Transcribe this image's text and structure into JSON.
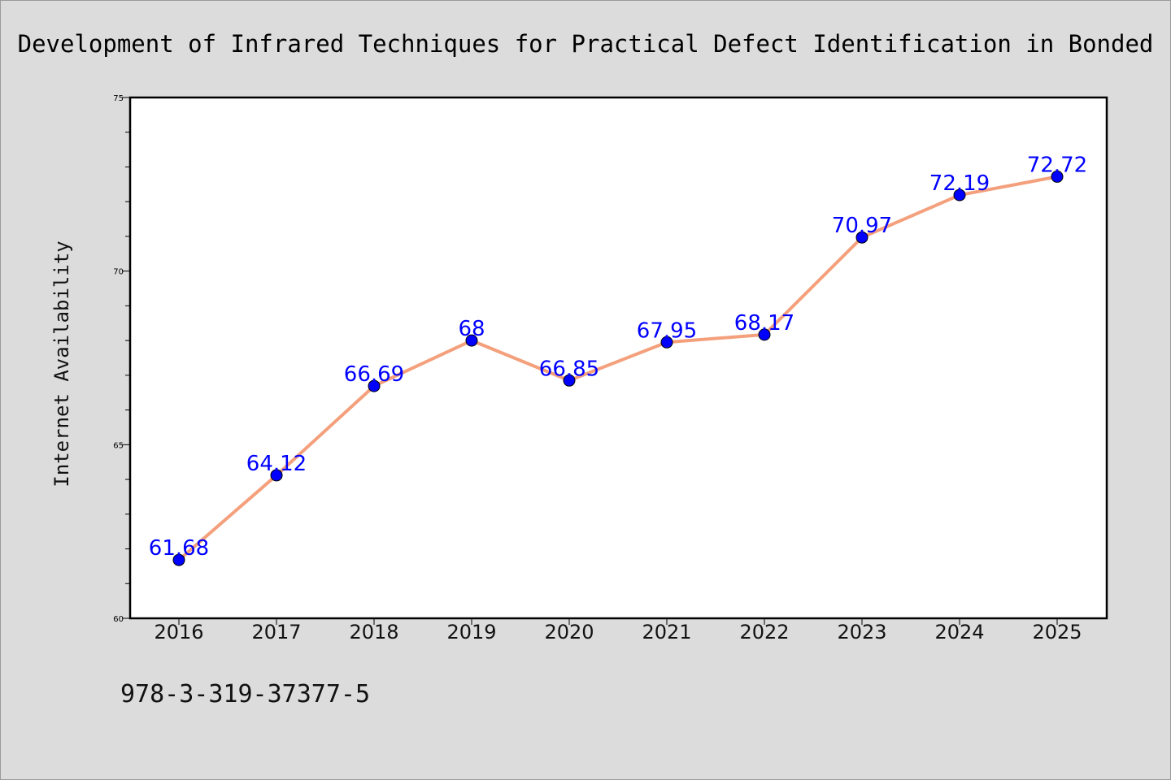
{
  "chart_data": {
    "type": "line",
    "title": "Development of Infrared Techniques for Practical Defect Identification in Bonded",
    "xlabel": "",
    "ylabel": "Internet Availability",
    "categories": [
      "2016",
      "2017",
      "2018",
      "2019",
      "2020",
      "2021",
      "2022",
      "2023",
      "2024",
      "2025"
    ],
    "series": [
      {
        "values": [
          61.68,
          64.12,
          66.69,
          68,
          66.85,
          67.95,
          68.17,
          70.97,
          72.19,
          72.72
        ],
        "labels": [
          "61.68",
          "64.12",
          "66.69",
          "68",
          "66.85",
          "67.95",
          "68.17",
          "70.97",
          "72.19",
          "72.72"
        ],
        "line_color": "#f4a07c",
        "marker_color": "#0000ff",
        "label_color": "#0000ff"
      }
    ],
    "ylim": [
      60,
      75
    ],
    "yticks": [
      "60",
      "65",
      "70",
      "75"
    ],
    "grid": false,
    "legend": "none"
  },
  "footer_text": "978-3-319-37377-5"
}
